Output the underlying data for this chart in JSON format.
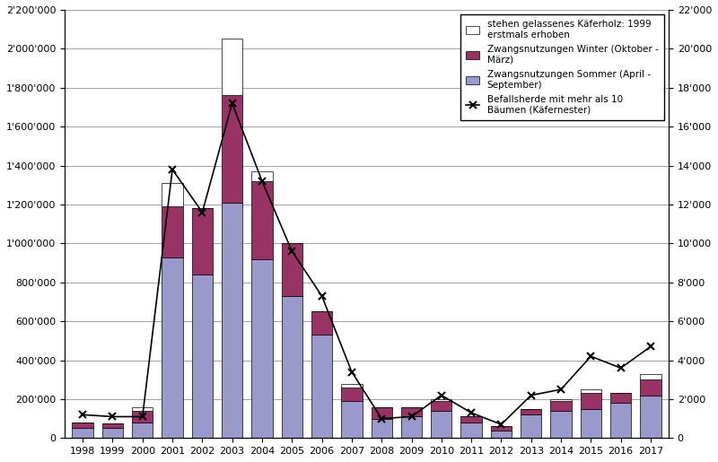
{
  "years": [
    1998,
    1999,
    2000,
    2001,
    2002,
    2003,
    2004,
    2005,
    2006,
    2007,
    2008,
    2009,
    2010,
    2011,
    2012,
    2013,
    2014,
    2015,
    2016,
    2017
  ],
  "summer": [
    50000,
    50000,
    80000,
    930000,
    840000,
    1210000,
    920000,
    730000,
    530000,
    190000,
    100000,
    110000,
    140000,
    80000,
    40000,
    120000,
    140000,
    150000,
    180000,
    220000
  ],
  "winter": [
    30000,
    25000,
    60000,
    260000,
    340000,
    550000,
    400000,
    270000,
    120000,
    70000,
    60000,
    50000,
    50000,
    30000,
    20000,
    30000,
    50000,
    80000,
    50000,
    80000
  ],
  "standing": [
    0,
    0,
    20000,
    120000,
    0,
    290000,
    50000,
    0,
    0,
    20000,
    0,
    0,
    10000,
    0,
    0,
    0,
    10000,
    20000,
    0,
    30000
  ],
  "befallsherde": [
    1200,
    1100,
    1100,
    13800,
    11600,
    17200,
    13200,
    9600,
    7300,
    3400,
    1000,
    1100,
    2200,
    1300,
    700,
    2200,
    2500,
    4200,
    3600,
    4700
  ],
  "summer_color": "#9999cc",
  "winter_color": "#993366",
  "standing_color": "#ffffff",
  "line_color": "#000000",
  "background_color": "#ffffff",
  "ylim_left": [
    0,
    2200000
  ],
  "ylim_right": [
    0,
    22000
  ],
  "yticks_left": [
    0,
    200000,
    400000,
    600000,
    800000,
    1000000,
    1200000,
    1400000,
    1600000,
    1800000,
    2000000,
    2200000
  ],
  "yticks_right": [
    0,
    2000,
    4000,
    6000,
    8000,
    10000,
    12000,
    14000,
    16000,
    18000,
    20000,
    22000
  ],
  "legend_labels": [
    "stehen gelassenes Käferholz: 1999\nerstmals erhoben",
    "Zwangsnutzungen Winter (Oktober -\nMärz)",
    "Zwangsnutzungen Sommer (April -\nSeptember)",
    "Befallsherde mit mehr als 10\nBäumen (Käfernester)"
  ]
}
